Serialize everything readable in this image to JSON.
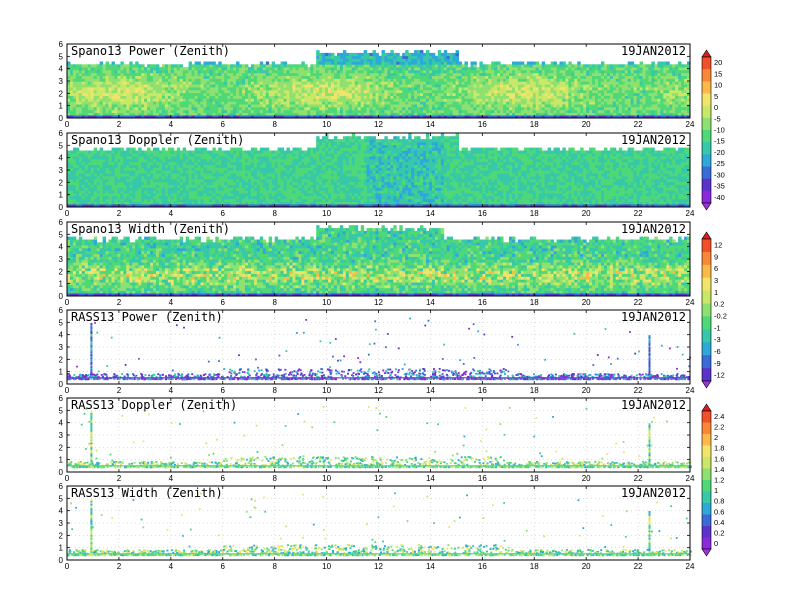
{
  "chart_data": [
    {
      "type": "heatmap",
      "title": "Spano13 Power (Zenith)",
      "date": "19JAN2012",
      "x_ticks": [
        "0",
        "2",
        "4",
        "6",
        "8",
        "10",
        "12",
        "14",
        "16",
        "18",
        "20",
        "22",
        "24"
      ],
      "y_ticks": [
        "0",
        "1",
        "2",
        "3",
        "4",
        "5",
        "6"
      ],
      "xlim": [
        0,
        24
      ],
      "ylim": [
        0,
        6
      ],
      "style": "dense",
      "colorbar": "power"
    },
    {
      "type": "heatmap",
      "title": "Spano13 Doppler (Zenith)",
      "date": "19JAN2012",
      "x_ticks": [
        "0",
        "2",
        "4",
        "6",
        "8",
        "10",
        "12",
        "14",
        "16",
        "18",
        "20",
        "22",
        "24"
      ],
      "y_ticks": [
        "0",
        "1",
        "2",
        "3",
        "4",
        "5",
        "6"
      ],
      "xlim": [
        0,
        24
      ],
      "ylim": [
        0,
        6
      ],
      "style": "dense",
      "colorbar": "power"
    },
    {
      "type": "heatmap",
      "title": "Spano13 Width (Zenith)",
      "date": "19JAN2012",
      "x_ticks": [
        "0",
        "2",
        "4",
        "6",
        "8",
        "10",
        "12",
        "14",
        "16",
        "18",
        "20",
        "22",
        "24"
      ],
      "y_ticks": [
        "0",
        "1",
        "2",
        "3",
        "4",
        "5",
        "6"
      ],
      "xlim": [
        0,
        24
      ],
      "ylim": [
        0,
        6
      ],
      "style": "dense",
      "colorbar": "width"
    },
    {
      "type": "heatmap",
      "title": "RASS13 Power (Zenith)",
      "date": "19JAN2012",
      "x_ticks": [
        "0",
        "2",
        "4",
        "6",
        "8",
        "10",
        "12",
        "14",
        "16",
        "18",
        "20",
        "22",
        "24"
      ],
      "y_ticks": [
        "0",
        "1",
        "2",
        "3",
        "4",
        "5",
        "6"
      ],
      "xlim": [
        0,
        24
      ],
      "ylim": [
        0,
        6
      ],
      "style": "sparse",
      "colorbar": "width"
    },
    {
      "type": "heatmap",
      "title": "RASS13 Doppler (Zenith)",
      "date": "19JAN2012",
      "x_ticks": [
        "0",
        "2",
        "4",
        "6",
        "8",
        "10",
        "12",
        "14",
        "16",
        "18",
        "20",
        "22",
        "24"
      ],
      "y_ticks": [
        "0",
        "1",
        "2",
        "3",
        "4",
        "5",
        "6"
      ],
      "xlim": [
        0,
        24
      ],
      "ylim": [
        0,
        6
      ],
      "style": "sparse",
      "colorbar": "rass"
    },
    {
      "type": "heatmap",
      "title": "RASS13 Width (Zenith)",
      "date": "19JAN2012",
      "x_ticks": [
        "0",
        "2",
        "4",
        "6",
        "8",
        "10",
        "12",
        "14",
        "16",
        "18",
        "20",
        "22",
        "24"
      ],
      "y_ticks": [
        "0",
        "1",
        "2",
        "3",
        "4",
        "5",
        "6"
      ],
      "xlim": [
        0,
        24
      ],
      "ylim": [
        0,
        6
      ],
      "style": "sparse",
      "colorbar": "rass"
    }
  ],
  "colorbars": {
    "power": {
      "labels": [
        "20",
        "15",
        "10",
        "5",
        "0",
        "-5",
        "-10",
        "-15",
        "-20",
        "-25",
        "-30",
        "-35",
        "-40"
      ],
      "colors": [
        "#d81e1e",
        "#f0502a",
        "#f88838",
        "#fcb848",
        "#f2e46a",
        "#c9e868",
        "#8ee070",
        "#4ed878",
        "#36c8a8",
        "#2ea8d8",
        "#3a6cd8",
        "#5a34c8",
        "#8a2ad8",
        "#a030d8"
      ]
    },
    "width": {
      "labels": [
        "12",
        "9",
        "6",
        "3",
        "1",
        "0.2",
        "-0.2",
        "-1",
        "-3",
        "-6",
        "-9",
        "-12"
      ],
      "colors": [
        "#d81e1e",
        "#f0502a",
        "#f88838",
        "#fcb848",
        "#f2e46a",
        "#c9e868",
        "#8ee070",
        "#4ed878",
        "#36c8a8",
        "#2ea8d8",
        "#3a6cd8",
        "#5a34c8",
        "#a030d8"
      ]
    },
    "rass": {
      "labels": [
        "2.4",
        "2.2",
        "2",
        "1.8",
        "1.6",
        "1.4",
        "1.2",
        "1",
        "0.8",
        "0.6",
        "0.4",
        "0.2",
        "0"
      ],
      "colors": [
        "#d81e1e",
        "#f0502a",
        "#f88838",
        "#fcb848",
        "#f2e46a",
        "#c9e868",
        "#8ee070",
        "#4ed878",
        "#36c8a8",
        "#2ea8d8",
        "#3a6cd8",
        "#5a34c8",
        "#8a2ad8",
        "#a030d8"
      ]
    }
  }
}
